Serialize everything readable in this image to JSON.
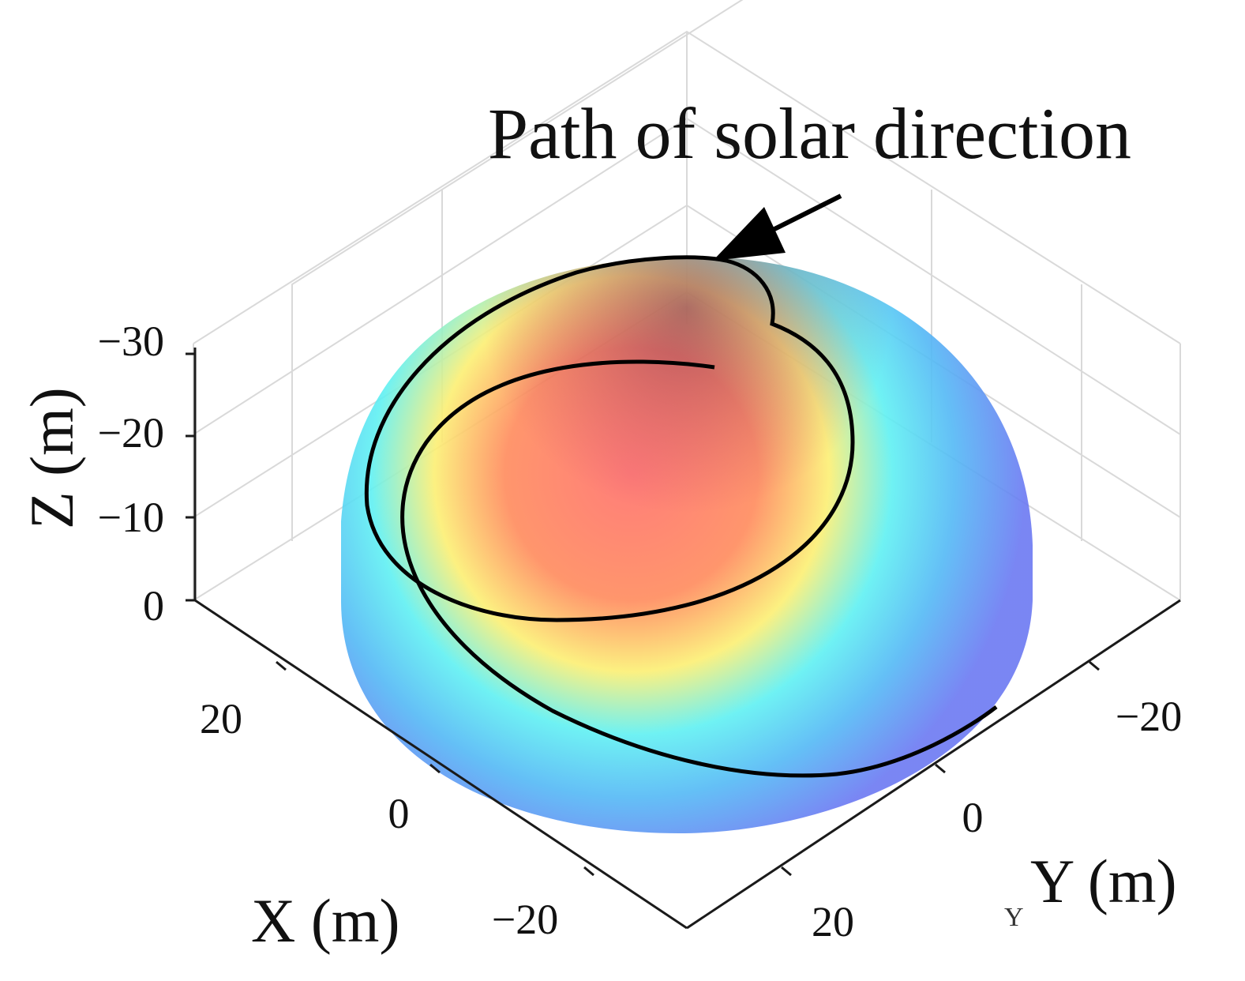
{
  "annotation": "Path of solar direction",
  "z_axis": {
    "label": "Z (m)",
    "ticks": [
      "0",
      "−10",
      "−20",
      "−30"
    ]
  },
  "x_axis": {
    "label": "X (m)",
    "ticks": [
      "20",
      "0",
      "−20"
    ]
  },
  "y_axis": {
    "label": "Y (m)",
    "ticks": [
      "−20",
      "0",
      "20"
    ],
    "fragment": "Y"
  },
  "colors": {
    "top": "#ff6f6a",
    "high": "#fcef73",
    "mid": "#5ff0f2",
    "low": "#6b78f2",
    "path": "#000000"
  }
}
